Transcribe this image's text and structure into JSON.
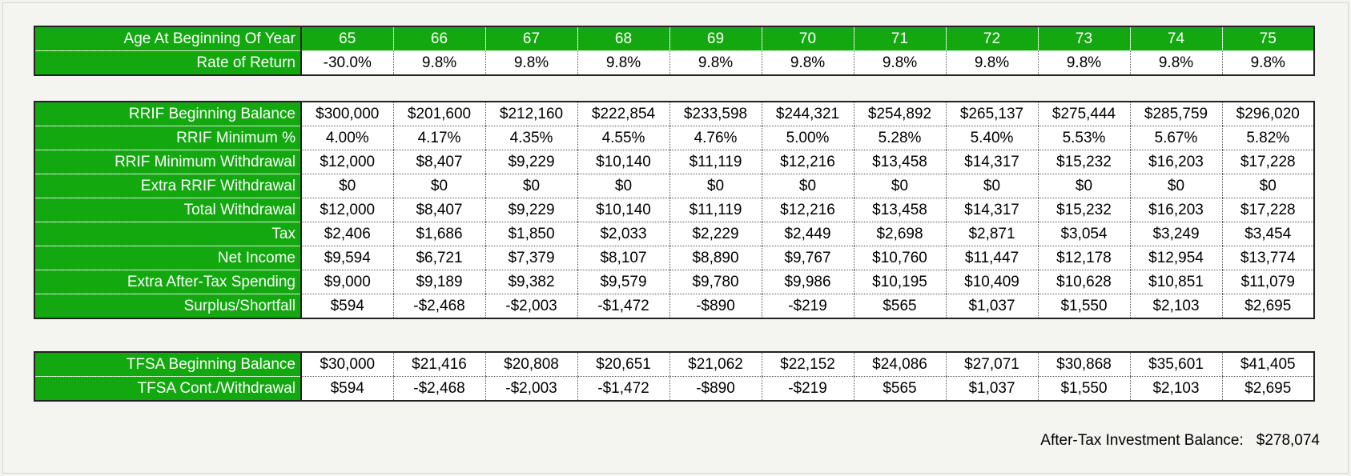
{
  "age_table": {
    "age_label": "Age At Beginning Of Year",
    "ages": [
      "65",
      "66",
      "67",
      "68",
      "69",
      "70",
      "71",
      "72",
      "73",
      "74",
      "75"
    ],
    "return_label": "Rate of Return",
    "returns": [
      "-30.0%",
      "9.8%",
      "9.8%",
      "9.8%",
      "9.8%",
      "9.8%",
      "9.8%",
      "9.8%",
      "9.8%",
      "9.8%",
      "9.8%"
    ]
  },
  "rrif_table": {
    "rows": [
      {
        "label": "RRIF Beginning Balance",
        "values": [
          "$300,000",
          "$201,600",
          "$212,160",
          "$222,854",
          "$233,598",
          "$244,321",
          "$254,892",
          "$265,137",
          "$275,444",
          "$285,759",
          "$296,020"
        ]
      },
      {
        "label": "RRIF Minimum %",
        "values": [
          "4.00%",
          "4.17%",
          "4.35%",
          "4.55%",
          "4.76%",
          "5.00%",
          "5.28%",
          "5.40%",
          "5.53%",
          "5.67%",
          "5.82%"
        ]
      },
      {
        "label": "RRIF Minimum Withdrawal",
        "values": [
          "$12,000",
          "$8,407",
          "$9,229",
          "$10,140",
          "$11,119",
          "$12,216",
          "$13,458",
          "$14,317",
          "$15,232",
          "$16,203",
          "$17,228"
        ]
      },
      {
        "label": "Extra RRIF Withdrawal",
        "values": [
          "$0",
          "$0",
          "$0",
          "$0",
          "$0",
          "$0",
          "$0",
          "$0",
          "$0",
          "$0",
          "$0"
        ]
      },
      {
        "label": "Total Withdrawal",
        "values": [
          "$12,000",
          "$8,407",
          "$9,229",
          "$10,140",
          "$11,119",
          "$12,216",
          "$13,458",
          "$14,317",
          "$15,232",
          "$16,203",
          "$17,228"
        ]
      },
      {
        "label": "Tax",
        "values": [
          "$2,406",
          "$1,686",
          "$1,850",
          "$2,033",
          "$2,229",
          "$2,449",
          "$2,698",
          "$2,871",
          "$3,054",
          "$3,249",
          "$3,454"
        ]
      },
      {
        "label": "Net Income",
        "values": [
          "$9,594",
          "$6,721",
          "$7,379",
          "$8,107",
          "$8,890",
          "$9,767",
          "$10,760",
          "$11,447",
          "$12,178",
          "$12,954",
          "$13,774"
        ]
      },
      {
        "label": "Extra After-Tax Spending",
        "values": [
          "$9,000",
          "$9,189",
          "$9,382",
          "$9,579",
          "$9,780",
          "$9,986",
          "$10,195",
          "$10,409",
          "$10,628",
          "$10,851",
          "$11,079"
        ]
      },
      {
        "label": "Surplus/Shortfall",
        "values": [
          "$594",
          "-$2,468",
          "-$2,003",
          "-$1,472",
          "-$890",
          "-$219",
          "$565",
          "$1,037",
          "$1,550",
          "$2,103",
          "$2,695"
        ]
      }
    ]
  },
  "tfsa_table": {
    "rows": [
      {
        "label": "TFSA Beginning Balance",
        "values": [
          "$30,000",
          "$21,416",
          "$20,808",
          "$20,651",
          "$21,062",
          "$22,152",
          "$24,086",
          "$27,071",
          "$30,868",
          "$35,601",
          "$41,405"
        ]
      },
      {
        "label": "TFSA Cont./Withdrawal",
        "values": [
          "$594",
          "-$2,468",
          "-$2,003",
          "-$1,472",
          "-$890",
          "-$219",
          "$565",
          "$1,037",
          "$1,550",
          "$2,103",
          "$2,695"
        ]
      }
    ]
  },
  "summary": {
    "label": "After-Tax Investment Balance:",
    "value": "$278,074"
  },
  "colors": {
    "header_green": "#13a80f",
    "header_text": "#ffffff",
    "cell_bg": "#ffffff",
    "border": "#222222"
  }
}
